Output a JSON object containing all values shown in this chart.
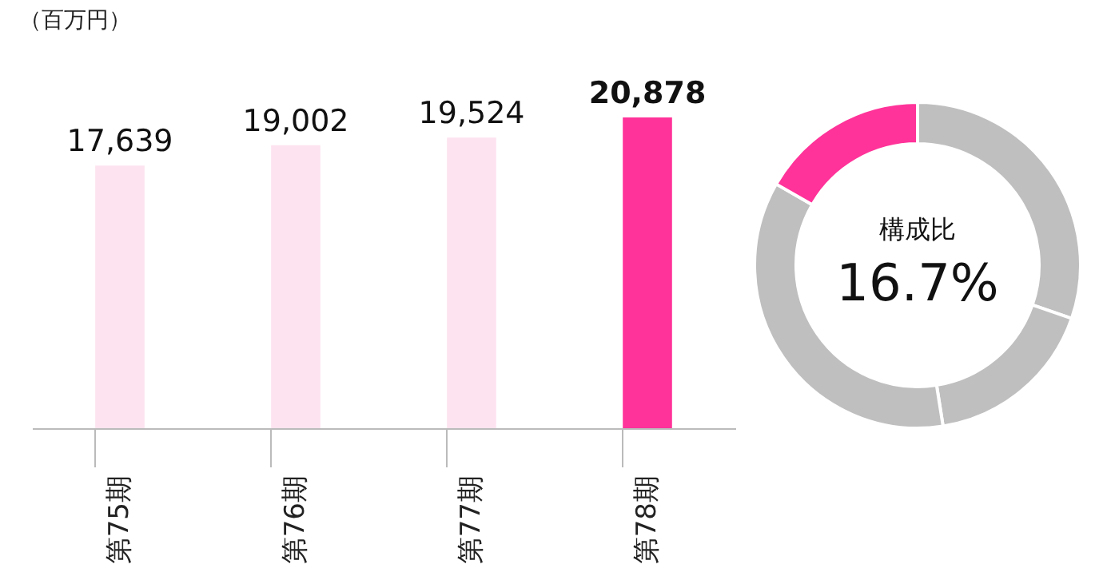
{
  "chart_data": [
    {
      "type": "bar",
      "categories": [
        "第75期",
        "第76期",
        "第77期",
        "第78期"
      ],
      "values": [
        17639,
        19002,
        19524,
        20878
      ],
      "value_labels": [
        "17,639",
        "19,002",
        "19,524",
        "20,878"
      ],
      "colors": [
        "#fde3ef",
        "#fde3ef",
        "#fde3ef",
        "#ff3399"
      ],
      "tick_labels": "x",
      "annotations": [
        "（百万円）"
      ]
    },
    {
      "type": "donut",
      "categories": [
        null,
        null,
        null,
        null
      ],
      "values": [
        30.3,
        17.2,
        35.8,
        16.7
      ],
      "colors": [
        "#bfbfbf",
        "#bfbfbf",
        "#bfbfbf",
        "#ff3399"
      ],
      "annotations": [
        "構成比",
        "16.7%"
      ]
    }
  ]
}
